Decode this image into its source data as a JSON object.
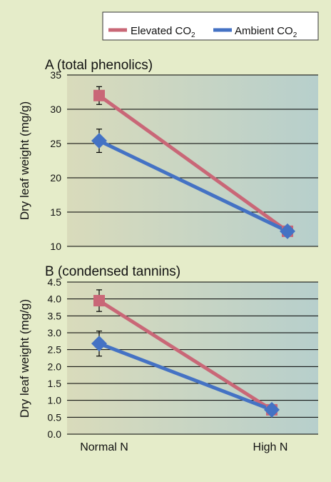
{
  "legend": {
    "items": [
      {
        "label": "Elevated CO",
        "sub": "2",
        "color": "#c96777"
      },
      {
        "label": "Ambient CO",
        "sub": "2",
        "color": "#4472c4"
      }
    ]
  },
  "chart_data": [
    {
      "type": "line",
      "title": "A (total phenolics)",
      "ylabel": "Dry leaf weight (mg/g)",
      "categories": [
        "Normal N",
        "High N"
      ],
      "show_x_tick_labels": false,
      "ylim": [
        10,
        35
      ],
      "yticks": [
        "10",
        "15",
        "20",
        "25",
        "30",
        "35"
      ],
      "yticks_values": [
        10,
        15,
        20,
        25,
        30,
        35
      ],
      "grid": true,
      "series": [
        {
          "name": "Elevated CO2",
          "marker": "square",
          "color": "#c96777",
          "values": [
            32.0,
            12.2
          ],
          "error": [
            1.3,
            0
          ]
        },
        {
          "name": "Ambient CO2",
          "marker": "diamond",
          "color": "#4472c4",
          "values": [
            25.4,
            12.2
          ],
          "error": [
            1.7,
            0
          ]
        }
      ]
    },
    {
      "type": "line",
      "title": "B (condensed tannins)",
      "ylabel": "Dry leaf weight (mg/g)",
      "categories": [
        "Normal N",
        "High N"
      ],
      "show_x_tick_labels": true,
      "ylim": [
        0,
        4.5
      ],
      "yticks": [
        "0.0",
        "0.5",
        "1.0",
        "1.5",
        "2.0",
        "2.5",
        "3.0",
        "3.5",
        "4.0",
        "4.5"
      ],
      "yticks_values": [
        0,
        0.5,
        1,
        1.5,
        2,
        2.5,
        3,
        3.5,
        4,
        4.5
      ],
      "grid": true,
      "series": [
        {
          "name": "Elevated CO2",
          "marker": "square",
          "color": "#c96777",
          "values": [
            3.95,
            0.72
          ],
          "error": [
            0.32,
            0
          ]
        },
        {
          "name": "Ambient CO2",
          "marker": "diamond",
          "color": "#4472c4",
          "values": [
            2.68,
            0.72
          ],
          "error": [
            0.37,
            0
          ]
        }
      ]
    }
  ]
}
